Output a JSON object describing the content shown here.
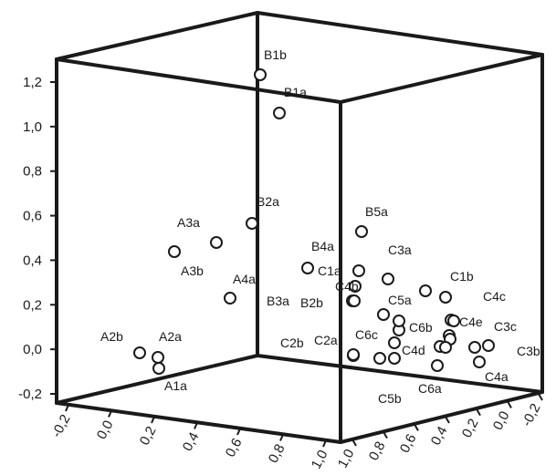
{
  "chart_data": {
    "type": "scatter",
    "projection": "3d",
    "title": "",
    "grid": false,
    "axes": {
      "vertical": {
        "label": "",
        "ticks": [
          "-0,2",
          "0,0",
          "0,2",
          "0,4",
          "0,6",
          "0,8",
          "1,0",
          "1,2"
        ]
      },
      "front": {
        "label": "",
        "ticks": [
          "-0,2",
          "0,0",
          "0,2",
          "0,4",
          "0,6",
          "0,8",
          "1,0"
        ]
      },
      "side": {
        "label": "",
        "ticks": [
          "1,0",
          "0,8",
          "0,6",
          "0,4",
          "0,2",
          "0,0",
          "-0,2"
        ]
      }
    },
    "points": [
      {
        "label": "B1b",
        "z": 1.22
      },
      {
        "label": "B1a",
        "z": 1.05
      },
      {
        "label": "B2a",
        "z": 0.55
      },
      {
        "label": "A3a",
        "z": 0.47
      },
      {
        "label": "A3b",
        "z": 0.42
      },
      {
        "label": "A4a",
        "z": 0.22
      },
      {
        "label": "B5a",
        "z": 0.52
      },
      {
        "label": "B4a",
        "z": 0.36
      },
      {
        "label": "C3a",
        "z": 0.36
      },
      {
        "label": "C1a",
        "z": 0.35
      },
      {
        "label": "C4b",
        "z": 0.27
      },
      {
        "label": "B3a",
        "z": 0.21
      },
      {
        "label": "B2b",
        "z": 0.21
      },
      {
        "label": "C5a",
        "z": 0.25
      },
      {
        "label": "C1b",
        "z": 0.22
      },
      {
        "label": "C4c",
        "z": 0.18
      },
      {
        "label": "C4e",
        "z": 0.12
      },
      {
        "label": "C6b",
        "z": 0.11
      },
      {
        "label": "C3c",
        "z": 0.07
      },
      {
        "label": "C6c",
        "z": 0.08
      },
      {
        "label": "C2b",
        "z": 0.0
      },
      {
        "label": "C2a",
        "z": 0.0
      },
      {
        "label": "C4d",
        "z": 0.02
      },
      {
        "label": "C3b",
        "z": -0.01
      },
      {
        "label": "A2b",
        "z": -0.03
      },
      {
        "label": "A2a",
        "z": -0.05
      },
      {
        "label": "A1a",
        "z": -0.1
      },
      {
        "label": "C4a",
        "z": -0.07
      },
      {
        "label": "C6a",
        "z": -0.08
      },
      {
        "label": "C5b",
        "z": -0.05
      }
    ]
  }
}
